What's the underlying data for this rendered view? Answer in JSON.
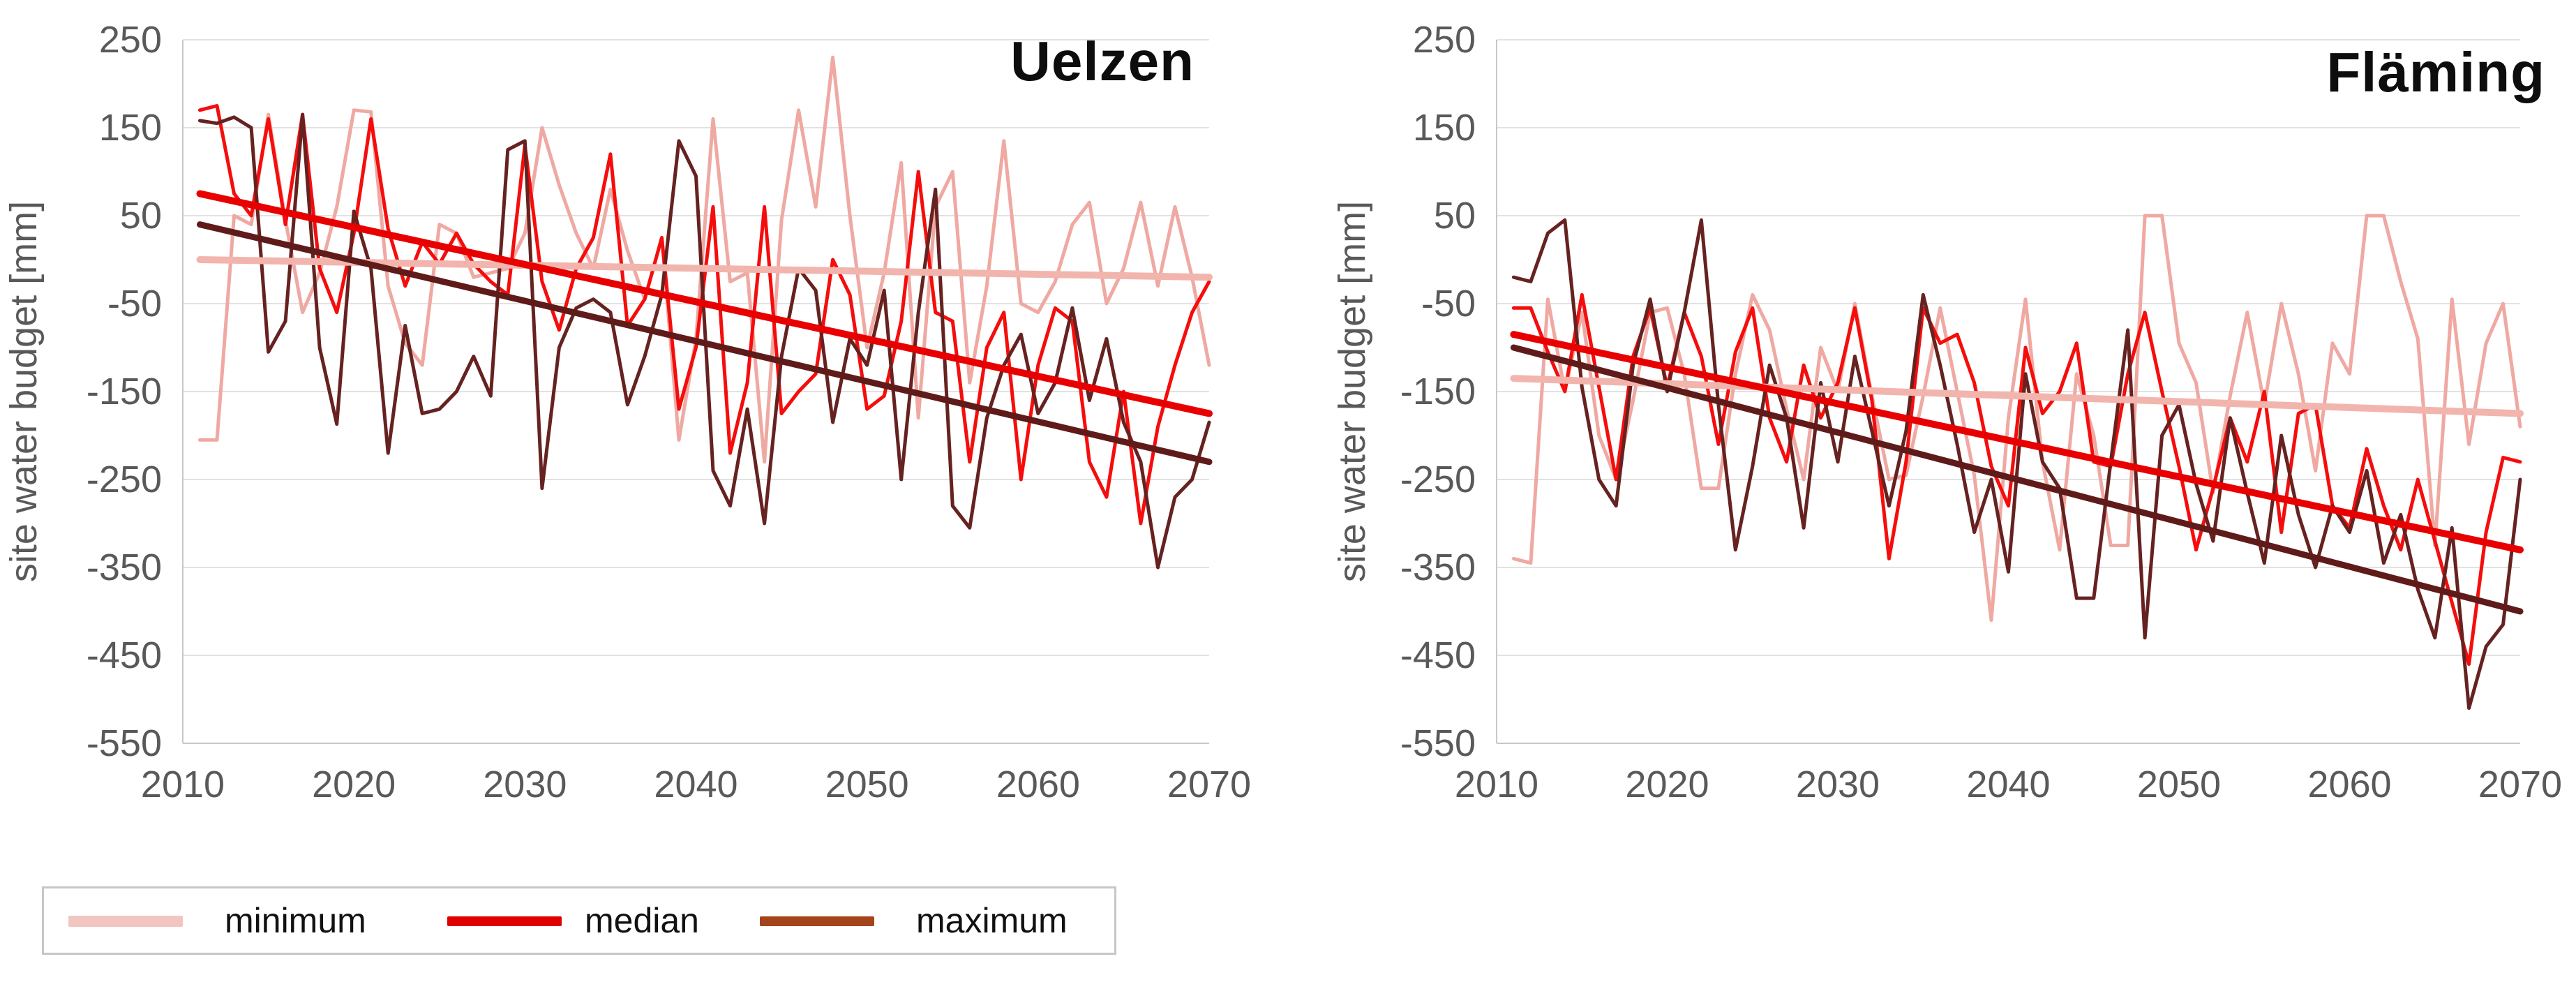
{
  "legend": {
    "items": [
      {
        "label": "minimum",
        "color": "#f2c6c0",
        "thickness": 16
      },
      {
        "label": "median",
        "color": "#e00000",
        "thickness": 14
      },
      {
        "label": "maximum",
        "color": "#a3441b",
        "thickness": 14
      }
    ]
  },
  "chart_data": [
    {
      "type": "line",
      "title": "Uelzen",
      "ylabel": "site water budget [mm]",
      "xlim": [
        2010,
        2070
      ],
      "ylim": [
        -550,
        250
      ],
      "yticks": [
        250,
        150,
        50,
        -50,
        -150,
        -250,
        -350,
        -450,
        -550
      ],
      "xticks": [
        2010,
        2020,
        2030,
        2040,
        2050,
        2060,
        2070
      ],
      "grid": "horizontal",
      "legend_position": "bottom-left",
      "years": [
        2011,
        2012,
        2013,
        2014,
        2015,
        2016,
        2017,
        2018,
        2019,
        2020,
        2021,
        2022,
        2023,
        2024,
        2025,
        2026,
        2027,
        2028,
        2029,
        2030,
        2031,
        2032,
        2033,
        2034,
        2035,
        2036,
        2037,
        2038,
        2039,
        2040,
        2041,
        2042,
        2043,
        2044,
        2045,
        2046,
        2047,
        2048,
        2049,
        2050,
        2051,
        2052,
        2053,
        2054,
        2055,
        2056,
        2057,
        2058,
        2059,
        2060,
        2061,
        2062,
        2063,
        2064,
        2065,
        2066,
        2067,
        2068,
        2069,
        2070
      ],
      "series": [
        {
          "name": "minimum",
          "color": "#efa9a2",
          "width": 5,
          "values": [
            -205,
            -205,
            50,
            40,
            165,
            45,
            -60,
            -15,
            60,
            170,
            168,
            -30,
            -95,
            -120,
            40,
            30,
            -20,
            -15,
            -10,
            30,
            150,
            85,
            30,
            -10,
            80,
            10,
            -45,
            25,
            -205,
            -90,
            160,
            -25,
            -15,
            -230,
            45,
            170,
            60,
            230,
            50,
            -100,
            -15,
            110,
            -180,
            60,
            100,
            -140,
            -30,
            135,
            -50,
            -60,
            -25,
            40,
            65,
            -50,
            -10,
            65,
            -30,
            60,
            -20,
            -120
          ]
        },
        {
          "name": "median",
          "color": "#f50d0c",
          "width": 5,
          "values": [
            170,
            175,
            75,
            50,
            160,
            40,
            165,
            -10,
            -60,
            30,
            160,
            35,
            -30,
            20,
            -5,
            30,
            -5,
            -25,
            -40,
            130,
            -25,
            -80,
            -10,
            25,
            120,
            -75,
            -45,
            25,
            -170,
            -100,
            60,
            -220,
            -140,
            60,
            -175,
            -150,
            -130,
            0,
            -40,
            -170,
            -155,
            -70,
            100,
            -60,
            -70,
            -230,
            -100,
            -60,
            -250,
            -120,
            -55,
            -70,
            -230,
            -270,
            -150,
            -300,
            -190,
            -120,
            -60,
            -25
          ]
        },
        {
          "name": "maximum",
          "color": "#662220",
          "width": 5,
          "values": [
            158,
            155,
            162,
            150,
            -105,
            -70,
            165,
            -100,
            -187,
            55,
            -10,
            -220,
            -75,
            -175,
            -170,
            -150,
            -110,
            -155,
            125,
            135,
            -260,
            -100,
            -55,
            -45,
            -60,
            -165,
            -110,
            -40,
            135,
            95,
            -240,
            -280,
            -170,
            -300,
            -110,
            -10,
            -35,
            -185,
            -90,
            -120,
            -35,
            -250,
            -60,
            80,
            -280,
            -305,
            -180,
            -120,
            -85,
            -175,
            -140,
            -55,
            -160,
            -90,
            -185,
            -230,
            -350,
            -270,
            -250,
            -185
          ]
        }
      ],
      "trendlines": [
        {
          "series": "minimum",
          "color": "#f2b5ae",
          "width": 10,
          "start": 0,
          "end": -20
        },
        {
          "series": "median",
          "color": "#e80000",
          "width": 10,
          "start": 75,
          "end": -175
        },
        {
          "series": "maximum",
          "color": "#5f1b19",
          "width": 9,
          "start": 40,
          "end": -230
        }
      ]
    },
    {
      "type": "line",
      "title": "Fläming",
      "ylabel": "site water budget [mm]",
      "xlim": [
        2010,
        2070
      ],
      "ylim": [
        -550,
        250
      ],
      "yticks": [
        250,
        150,
        50,
        -50,
        -150,
        -250,
        -350,
        -450,
        -550
      ],
      "xticks": [
        2010,
        2020,
        2030,
        2040,
        2050,
        2060,
        2070
      ],
      "grid": "horizontal",
      "legend_position": "none",
      "years": [
        2011,
        2012,
        2013,
        2014,
        2015,
        2016,
        2017,
        2018,
        2019,
        2020,
        2021,
        2022,
        2023,
        2024,
        2025,
        2026,
        2027,
        2028,
        2029,
        2030,
        2031,
        2032,
        2033,
        2034,
        2035,
        2036,
        2037,
        2038,
        2039,
        2040,
        2041,
        2042,
        2043,
        2044,
        2045,
        2046,
        2047,
        2048,
        2049,
        2050,
        2051,
        2052,
        2053,
        2054,
        2055,
        2056,
        2057,
        2058,
        2059,
        2060,
        2061,
        2062,
        2063,
        2064,
        2065,
        2066,
        2067,
        2068,
        2069,
        2070
      ],
      "series": [
        {
          "name": "minimum",
          "color": "#efa9a2",
          "width": 5,
          "values": [
            -340,
            -345,
            -45,
            -150,
            -60,
            -200,
            -250,
            -160,
            -60,
            -55,
            -130,
            -260,
            -260,
            -130,
            -40,
            -80,
            -170,
            -250,
            -100,
            -150,
            -50,
            -155,
            -250,
            -245,
            -155,
            -55,
            -150,
            -245,
            -410,
            -180,
            -45,
            -230,
            -330,
            -130,
            -200,
            -325,
            -325,
            50,
            50,
            -95,
            -140,
            -265,
            -155,
            -60,
            -165,
            -50,
            -130,
            -240,
            -95,
            -130,
            50,
            50,
            -25,
            -90,
            -325,
            -45,
            -210,
            -95,
            -50,
            -190
          ]
        },
        {
          "name": "median",
          "color": "#f50d0c",
          "width": 5,
          "values": [
            -55,
            -55,
            -105,
            -150,
            -40,
            -145,
            -250,
            -110,
            -55,
            -145,
            -60,
            -110,
            -210,
            -105,
            -55,
            -180,
            -230,
            -120,
            -180,
            -140,
            -55,
            -160,
            -340,
            -230,
            -55,
            -95,
            -85,
            -140,
            -235,
            -280,
            -100,
            -175,
            -150,
            -95,
            -230,
            -235,
            -130,
            -60,
            -150,
            -235,
            -330,
            -260,
            -180,
            -230,
            -150,
            -310,
            -175,
            -165,
            -280,
            -305,
            -215,
            -280,
            -330,
            -250,
            -320,
            -390,
            -460,
            -310,
            -225,
            -230
          ]
        },
        {
          "name": "maximum",
          "color": "#662220",
          "width": 5,
          "values": [
            -20,
            -25,
            30,
            45,
            -145,
            -250,
            -280,
            -120,
            -45,
            -150,
            -60,
            45,
            -165,
            -330,
            -235,
            -120,
            -180,
            -305,
            -140,
            -230,
            -110,
            -195,
            -280,
            -195,
            -40,
            -120,
            -210,
            -310,
            -250,
            -355,
            -130,
            -230,
            -260,
            -385,
            -385,
            -230,
            -80,
            -430,
            -200,
            -165,
            -255,
            -320,
            -180,
            -265,
            -345,
            -200,
            -290,
            -350,
            -280,
            -310,
            -240,
            -345,
            -290,
            -375,
            -430,
            -305,
            -510,
            -440,
            -415,
            -250
          ]
        }
      ],
      "trendlines": [
        {
          "series": "minimum",
          "color": "#f2b5ae",
          "width": 10,
          "start": -135,
          "end": -175
        },
        {
          "series": "median",
          "color": "#e80000",
          "width": 10,
          "start": -85,
          "end": -330
        },
        {
          "series": "maximum",
          "color": "#5f1b19",
          "width": 9,
          "start": -100,
          "end": -400
        }
      ]
    }
  ]
}
